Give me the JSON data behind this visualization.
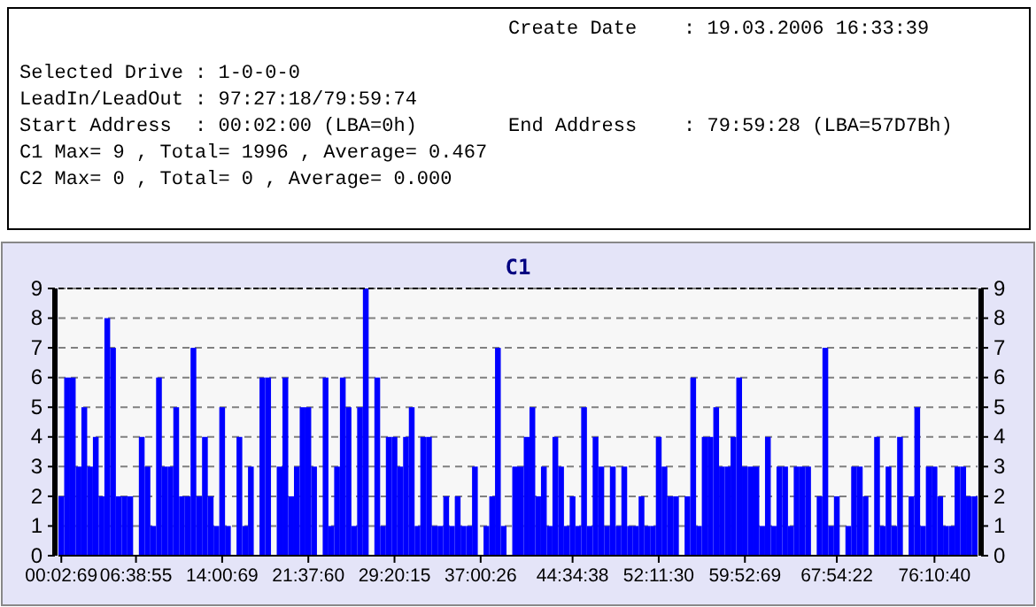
{
  "chart_data": {
    "type": "bar",
    "title": "C1",
    "annotations": [
      "Create Date    : 19.03.2006 16:33:39",
      "Selected Drive : 1-0-0-0",
      "LeadIn/LeadOut : 97:27:18/79:59:74",
      "Start Address  : 00:02:00 (LBA=0h)",
      "End Address    : 79:59:28 (LBA=57D7Bh)",
      "C1 Max= 9 , Total= 1996 , Average= 0.467",
      "C2 Max= 0 , Total= 0 , Average= 0.000"
    ],
    "categories": [
      "00:02:69",
      null,
      null,
      null,
      null,
      null,
      null,
      null,
      null,
      null,
      null,
      null,
      null,
      "06:38:55",
      null,
      null,
      null,
      null,
      null,
      null,
      null,
      null,
      null,
      null,
      null,
      null,
      null,
      null,
      "14:00:69",
      null,
      null,
      null,
      null,
      null,
      null,
      null,
      null,
      null,
      null,
      null,
      null,
      null,
      null,
      "21:37:60",
      null,
      null,
      null,
      null,
      null,
      null,
      null,
      null,
      null,
      null,
      null,
      null,
      null,
      null,
      "29:20:15",
      null,
      null,
      null,
      null,
      null,
      null,
      null,
      null,
      null,
      null,
      null,
      null,
      null,
      null,
      "37:00:26",
      null,
      null,
      null,
      null,
      null,
      null,
      null,
      null,
      null,
      null,
      null,
      null,
      null,
      null,
      null,
      "44:34:38",
      null,
      null,
      null,
      null,
      null,
      null,
      null,
      null,
      null,
      null,
      null,
      null,
      null,
      null,
      "52:11:30",
      null,
      null,
      null,
      null,
      null,
      null,
      null,
      null,
      null,
      null,
      null,
      null,
      null,
      null,
      "59:52:69",
      null,
      null,
      null,
      null,
      null,
      null,
      null,
      null,
      null,
      null,
      null,
      null,
      null,
      null,
      null,
      "67:54:22",
      null,
      null,
      null,
      null,
      null,
      null,
      null,
      null,
      null,
      null,
      null,
      null,
      null,
      null,
      null,
      null,
      "76:10:40",
      null,
      null,
      null,
      null,
      null,
      null,
      null
    ],
    "values": [
      2,
      6,
      6,
      3,
      5,
      3,
      4,
      2,
      8,
      7,
      2,
      2,
      2,
      0,
      4,
      3,
      1,
      6,
      3,
      3,
      5,
      2,
      2,
      7,
      2,
      4,
      2,
      1,
      5,
      1,
      0,
      4,
      1,
      3,
      0,
      6,
      6,
      0,
      3,
      6,
      2,
      3,
      5,
      5,
      3,
      0,
      6,
      1,
      3,
      6,
      5,
      1,
      5,
      9,
      0,
      6,
      1,
      4,
      4,
      3,
      4,
      5,
      1,
      4,
      4,
      1,
      1,
      2,
      1,
      2,
      1,
      1,
      3,
      0,
      1,
      2,
      7,
      1,
      0,
      3,
      3,
      4,
      5,
      2,
      3,
      1,
      4,
      3,
      1,
      2,
      1,
      5,
      1,
      4,
      3,
      1,
      3,
      1,
      3,
      1,
      1,
      2,
      1,
      1,
      4,
      3,
      2,
      2,
      0,
      2,
      6,
      1,
      4,
      4,
      5,
      3,
      3,
      4,
      6,
      3,
      3,
      3,
      1,
      4,
      1,
      3,
      3,
      1,
      3,
      3,
      3,
      0,
      2,
      7,
      1,
      2,
      0,
      1,
      3,
      3,
      2,
      0,
      4,
      1,
      3,
      1,
      4,
      0,
      2,
      5,
      1,
      3,
      3,
      2,
      1,
      1,
      3,
      3,
      2,
      2
    ],
    "color": "#0000ff",
    "ylim": [
      0,
      9
    ],
    "yticks": [
      0,
      1,
      2,
      3,
      4,
      5,
      6,
      7,
      8,
      9
    ],
    "y2lim": [
      0,
      9
    ],
    "y2ticks": [
      0,
      1,
      2,
      3,
      4,
      5,
      6,
      7,
      8,
      9
    ],
    "grid": "y"
  }
}
